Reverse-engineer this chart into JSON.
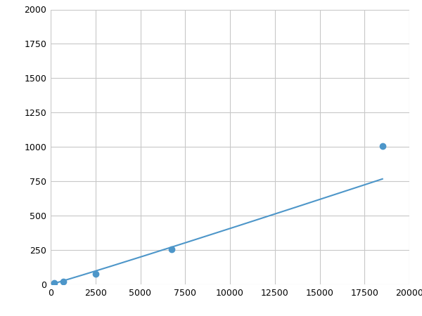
{
  "x": [
    200,
    700,
    2500,
    6750,
    18500
  ],
  "y": [
    10,
    20,
    75,
    255,
    1005
  ],
  "line_color": "#4d96c9",
  "marker_color": "#4d96c9",
  "marker_size": 6,
  "linewidth": 1.5,
  "xlim": [
    0,
    20000
  ],
  "ylim": [
    0,
    2000
  ],
  "xticks": [
    0,
    2500,
    5000,
    7500,
    10000,
    12500,
    15000,
    17500,
    20000
  ],
  "yticks": [
    0,
    250,
    500,
    750,
    1000,
    1250,
    1500,
    1750,
    2000
  ],
  "grid_color": "#c8c8c8",
  "bg_color": "#ffffff",
  "fig_bg_color": "#ffffff"
}
